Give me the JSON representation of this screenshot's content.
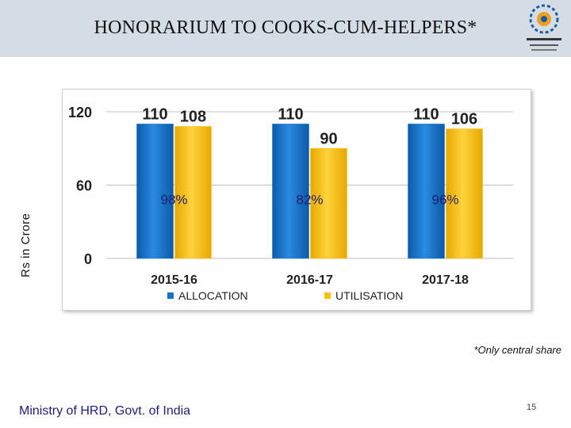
{
  "header": {
    "title": "HONORARIUM TO COOKS-CUM-HELPERS*",
    "logo_icon": "midday-meal-logo-icon"
  },
  "chart_data": {
    "type": "bar",
    "categories": [
      "2015-16",
      "2016-17",
      "2017-18"
    ],
    "series": [
      {
        "name": "ALLOCATION",
        "values": [
          110,
          110,
          110
        ],
        "color": "#1673c9"
      },
      {
        "name": "UTILISATION",
        "values": [
          108,
          90,
          106
        ],
        "color": "#ffc000"
      }
    ],
    "data_labels": {
      "ALLOCATION": [
        "110",
        "110",
        "110"
      ],
      "UTILISATION": [
        "108",
        "90",
        "106"
      ]
    },
    "percent_labels": [
      "98%",
      "82%",
      "96%"
    ],
    "ylabel": "Rs in Crore",
    "yticks": [
      0,
      60,
      120
    ],
    "ylim": [
      0,
      120
    ],
    "grid": true,
    "legend_position": "bottom"
  },
  "footnote": "*Only central share",
  "footer": {
    "ministry": "Ministry of HRD, Govt. of India",
    "page_number": "15"
  }
}
